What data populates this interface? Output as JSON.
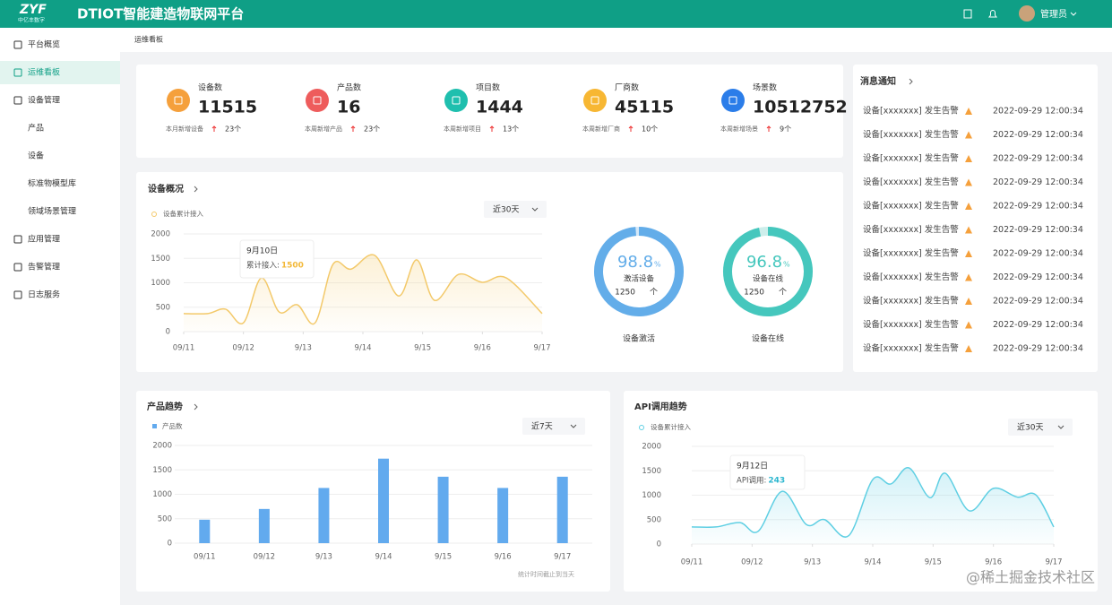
{
  "header": {
    "logo": "ZYF",
    "logo_sub": "中亿丰数字",
    "title": "DTIOT智能建造物联网平台",
    "user": "管理员"
  },
  "sidebar": {
    "items": [
      {
        "label": "平台概览",
        "level": 1
      },
      {
        "label": "运维看板",
        "level": 1,
        "active": true
      },
      {
        "label": "设备管理",
        "level": 1
      },
      {
        "label": "产品",
        "level": 2
      },
      {
        "label": "设备",
        "level": 2
      },
      {
        "label": "标准物模型库",
        "level": 2
      },
      {
        "label": "领域场景管理",
        "level": 2
      },
      {
        "label": "应用管理",
        "level": 1
      },
      {
        "label": "告警管理",
        "level": 1
      },
      {
        "label": "日志服务",
        "level": 1
      }
    ]
  },
  "breadcrumb": "运维看板",
  "stats": [
    {
      "label": "设备数",
      "value": 11515,
      "note": "本月新增设备",
      "increase": "23个",
      "color": "#f5a03c"
    },
    {
      "label": "产品数",
      "value": 16,
      "note": "本周新增产品",
      "increase": "23个",
      "color": "#ee5c5c"
    },
    {
      "label": "项目数",
      "value": 1444,
      "note": "本周新增项目",
      "increase": "13个",
      "color": "#1fbfae"
    },
    {
      "label": "厂商数",
      "value": 45115,
      "note": "本周新增厂商",
      "increase": "10个",
      "color": "#f7b733"
    },
    {
      "label": "场景数",
      "value": 10512752,
      "note": "本周新增场景",
      "increase": "9个",
      "color": "#2b7de9"
    }
  ],
  "cards": {
    "device_overview": {
      "title": "设备概况",
      "range": "近30天"
    },
    "product_trend": {
      "title": "产品趋势",
      "range": "近7天",
      "footnote": "统计时间截止到当天"
    },
    "api_trend": {
      "title": "API调用趋势",
      "range": "近30天"
    },
    "messages": {
      "title": "消息通知",
      "items": [
        {
          "text": "设备[xxxxxxx] 发生告警",
          "time": "2022-09-29 12:00:34"
        },
        {
          "text": "设备[xxxxxxx] 发生告警",
          "time": "2022-09-29 12:00:34"
        },
        {
          "text": "设备[xxxxxxx] 发生告警",
          "time": "2022-09-29 12:00:34"
        },
        {
          "text": "设备[xxxxxxx] 发生告警",
          "time": "2022-09-29 12:00:34"
        },
        {
          "text": "设备[xxxxxxx] 发生告警",
          "time": "2022-09-29 12:00:34"
        },
        {
          "text": "设备[xxxxxxx] 发生告警",
          "time": "2022-09-29 12:00:34"
        },
        {
          "text": "设备[xxxxxxx] 发生告警",
          "time": "2022-09-29 12:00:34"
        },
        {
          "text": "设备[xxxxxxx] 发生告警",
          "time": "2022-09-29 12:00:34"
        },
        {
          "text": "设备[xxxxxxx] 发生告警",
          "time": "2022-09-29 12:00:34"
        },
        {
          "text": "设备[xxxxxxx] 发生告警",
          "time": "2022-09-29 12:00:34"
        },
        {
          "text": "设备[xxxxxxx] 发生告警",
          "time": "2022-09-29 12:00:34"
        }
      ]
    }
  },
  "watermark": "@稀土掘金技术社区",
  "chart_data": [
    {
      "type": "line",
      "x": [
        0,
        0.4,
        0.7,
        1.0,
        1.3,
        1.6,
        1.9,
        2.2,
        2.5,
        2.8,
        3.2,
        3.6,
        3.9,
        4.2,
        4.6,
        5.0,
        5.4,
        6.0
      ],
      "series": [
        {
          "name": "设备累计接入",
          "color": "#f3c96a",
          "values": [
            370,
            370,
            460,
            180,
            1100,
            400,
            550,
            180,
            1380,
            1280,
            1560,
            730,
            1470,
            640,
            1170,
            1010,
            1100,
            370
          ]
        }
      ],
      "xlim": [
        0,
        6
      ],
      "xticks": [
        {
          "value": 0,
          "label": "09/11"
        },
        {
          "value": 1,
          "label": "09/12"
        },
        {
          "value": 2,
          "label": "9/13"
        },
        {
          "value": 3,
          "label": "9/14"
        },
        {
          "value": 4,
          "label": "9/15"
        },
        {
          "value": 5,
          "label": "9/16"
        },
        {
          "value": 6,
          "label": "9/17"
        }
      ],
      "ylim": [
        0,
        2000
      ],
      "yticks": [
        0,
        500,
        1000,
        1500,
        2000
      ],
      "grid": true,
      "annotation": {
        "title": "9月10日",
        "label": "累计接入:",
        "value": 1500,
        "color": "#f3b93a"
      }
    },
    {
      "type": "bar",
      "categories": [
        "09/11",
        "09/12",
        "9/13",
        "9/14",
        "9/15",
        "9/16",
        "9/17"
      ],
      "series": [
        {
          "name": "产品数",
          "color": "#62aaee",
          "values": [
            480,
            700,
            1130,
            1730,
            1360,
            1130,
            1360
          ]
        }
      ],
      "ylim": [
        0,
        2000
      ],
      "yticks": [
        0,
        500,
        1000,
        1500,
        2000
      ],
      "grid": true
    },
    {
      "type": "line",
      "x": [
        0,
        0.4,
        0.8,
        1.1,
        1.5,
        1.9,
        2.2,
        2.6,
        3.0,
        3.3,
        3.6,
        3.95,
        4.2,
        4.6,
        5.0,
        5.4,
        5.7,
        6.0
      ],
      "series": [
        {
          "name": "设备累计接入",
          "color": "#5fcfe3",
          "values": [
            350,
            350,
            440,
            260,
            1080,
            400,
            500,
            170,
            1320,
            1230,
            1560,
            950,
            1450,
            680,
            1140,
            960,
            1010,
            350
          ]
        }
      ],
      "xlim": [
        0,
        6
      ],
      "xticks": [
        {
          "value": 0,
          "label": "09/11"
        },
        {
          "value": 1,
          "label": "09/12"
        },
        {
          "value": 2,
          "label": "9/13"
        },
        {
          "value": 3,
          "label": "9/14"
        },
        {
          "value": 4,
          "label": "9/15"
        },
        {
          "value": 5,
          "label": "9/16"
        },
        {
          "value": 6,
          "label": "9/17"
        }
      ],
      "ylim": [
        0,
        2000
      ],
      "yticks": [
        0,
        500,
        1000,
        1500,
        2000
      ],
      "grid": true,
      "annotation": {
        "title": "9月12日",
        "label": "API调用:",
        "value": 243,
        "color": "#2bb6cf"
      }
    },
    {
      "type": "ring",
      "title": "设备激活",
      "values": [
        98.8
      ],
      "unit": "%",
      "caption": "激活设备",
      "count": 1250,
      "count_unit": "个",
      "color": "#63ade9",
      "track": "#d5e8f8"
    },
    {
      "type": "ring",
      "title": "设备在线",
      "values": [
        96.8
      ],
      "unit": "%",
      "caption": "设备在线",
      "count": 1250,
      "count_unit": "个",
      "color": "#45c7bd",
      "track": "#cdeeeb"
    }
  ]
}
